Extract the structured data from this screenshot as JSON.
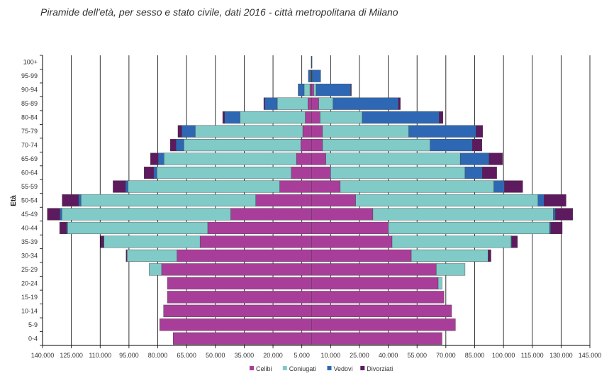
{
  "title": "Piramide dell'età, per sesso e stato civile, dati 2016 - città metropolitana di Milano",
  "chart_data": {
    "type": "bar",
    "orientation": "horizontal",
    "stacked": true,
    "title": "Piramide dell'età, per sesso e stato civile, dati 2016 - città metropolitana di Milano",
    "ylabel": "Età",
    "xlabel": "",
    "xlim": [
      -140000,
      145000
    ],
    "x_ticks": [
      "140.000",
      "125.000",
      "110.000",
      "95.000",
      "80.000",
      "65.000",
      "50.000",
      "35.000",
      "20.000",
      "5.000",
      "10.000",
      "25.000",
      "40.000",
      "55.000",
      "70.000",
      "85.000",
      "100.000",
      "115.000",
      "130.000",
      "145.000"
    ],
    "grid": "vertical",
    "legend_position": "bottom",
    "categories": [
      "0-4",
      "5-9",
      "10-14",
      "15-19",
      "20-24",
      "25-29",
      "30-34",
      "35-39",
      "40-44",
      "45-49",
      "50-54",
      "55-59",
      "60-64",
      "65-69",
      "70-74",
      "75-79",
      "80-84",
      "85-89",
      "90-94",
      "95-99",
      "100+"
    ],
    "colors": {
      "Celibi": "#a93e9a",
      "Coniugati": "#80cac8",
      "Vedovi": "#2e68b4",
      "Divorziati": "#5e1a5e"
    },
    "left_series": [
      {
        "name": "Celibi",
        "values": [
          72000,
          79000,
          77000,
          75000,
          75000,
          78000,
          70000,
          58000,
          54000,
          42000,
          29000,
          16500,
          10500,
          7800,
          5500,
          4500,
          3200,
          1800,
          800,
          200,
          30
        ]
      },
      {
        "name": "Coniugati",
        "values": [
          0,
          0,
          0,
          0,
          0,
          6500,
          26000,
          50000,
          73000,
          88000,
          91000,
          79000,
          70000,
          69000,
          61000,
          56000,
          34000,
          16000,
          3000,
          300,
          20
        ]
      },
      {
        "name": "Vedovi",
        "values": [
          0,
          0,
          0,
          0,
          0,
          0,
          0,
          300,
          600,
          1000,
          1300,
          1300,
          1600,
          3000,
          4000,
          7000,
          8000,
          6500,
          3000,
          1100,
          50
        ]
      },
      {
        "name": "Divorziati",
        "values": [
          0,
          0,
          0,
          0,
          0,
          0,
          500,
          1500,
          3500,
          6500,
          8500,
          6500,
          5000,
          4000,
          3000,
          2000,
          1000,
          500,
          100,
          0,
          0
        ]
      }
    ],
    "right_series": [
      {
        "name": "Celibi",
        "values": [
          68000,
          75000,
          73000,
          69000,
          66000,
          65000,
          52000,
          42000,
          40000,
          32000,
          23000,
          15000,
          10000,
          7500,
          5800,
          5700,
          4500,
          3800,
          1200,
          200,
          20
        ]
      },
      {
        "name": "Coniugati",
        "values": [
          0,
          0,
          0,
          0,
          2000,
          15000,
          40000,
          62000,
          84000,
          94000,
          95000,
          80000,
          70000,
          70000,
          56000,
          45000,
          22000,
          7500,
          1300,
          100,
          0
        ]
      },
      {
        "name": "Vedovi",
        "values": [
          0,
          0,
          0,
          0,
          0,
          0,
          0,
          300,
          600,
          1100,
          3100,
          5500,
          9000,
          15000,
          22000,
          35000,
          40000,
          34000,
          18000,
          4500,
          300
        ]
      },
      {
        "name": "Divorziati",
        "values": [
          0,
          0,
          0,
          0,
          0,
          0,
          1500,
          3000,
          6000,
          9000,
          11500,
          9500,
          7500,
          7000,
          5000,
          3500,
          2000,
          1000,
          300,
          0,
          0
        ]
      }
    ]
  }
}
